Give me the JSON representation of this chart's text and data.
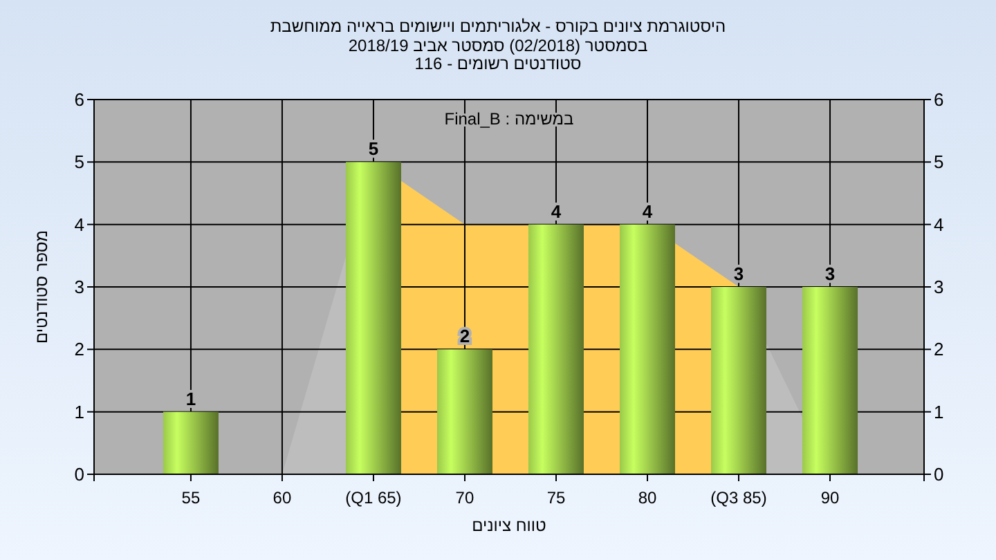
{
  "chart_data": {
    "type": "bar",
    "title": "היסטוגרמת ציונים בקורס - אלגוריתמים ויישומים בראייה ממוחשבת",
    "subtitle": "בסמסטר  (02/2018)  סמסטר אביב 2018/19\nסטודנטים רשומים - 116",
    "xlabel": "טווח ציונים",
    "ylabel": "מספר סטודנטים",
    "annotations": [
      "במשימה : Final_B"
    ],
    "categories": [
      "55",
      "60",
      "(Q1 65)",
      "70",
      "75",
      "80",
      "(Q3 85)",
      "90"
    ],
    "series": [
      {
        "type": "area",
        "color": "#bdbdbd",
        "values": [
          null,
          0,
          5,
          4,
          null,
          4,
          3,
          0
        ]
      },
      {
        "type": "area",
        "color": "#ffcc55",
        "values": [
          null,
          null,
          5,
          4,
          null,
          4,
          3,
          null
        ]
      },
      {
        "color": "#9bc84a",
        "values": [
          1,
          0,
          5,
          2,
          4,
          4,
          3,
          3
        ],
        "value_labels": [
          "1",
          null,
          "5",
          "2",
          "4",
          "4",
          "3",
          "3"
        ]
      }
    ],
    "ylim": [
      0,
      6
    ],
    "yticks": [
      0,
      1,
      2,
      3,
      4,
      5,
      6
    ],
    "y2lim": [
      0,
      6
    ],
    "y2ticks": [
      0,
      1,
      2,
      3,
      4,
      5,
      6
    ],
    "grid": true
  }
}
